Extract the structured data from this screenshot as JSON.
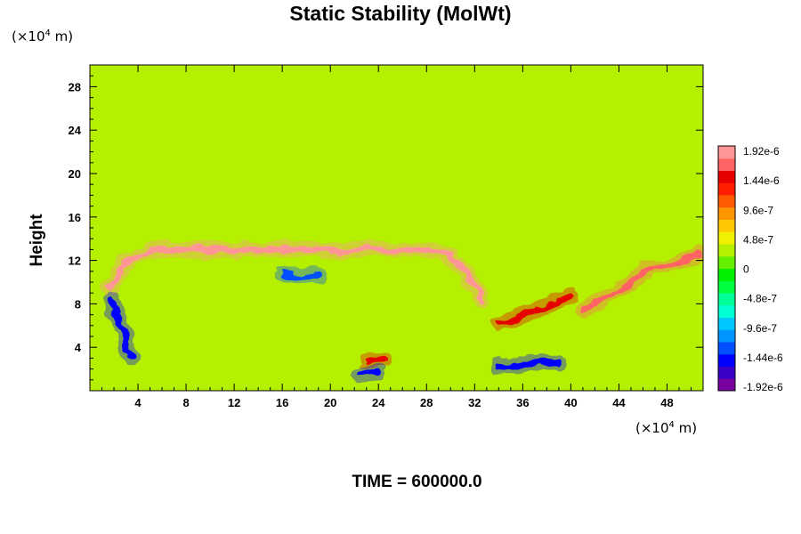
{
  "chart_data": {
    "type": "heatmap",
    "title": "Static Stability (MolWt)",
    "xlabel": "",
    "ylabel": "Height",
    "x_unit": {
      "prefix": "(×10",
      "exp": "4",
      "suffix": " m)"
    },
    "y_unit": {
      "prefix": "(×10",
      "exp": "4",
      "suffix": " m)"
    },
    "xlim": [
      0,
      51
    ],
    "ylim": [
      0,
      30
    ],
    "x_ticks": [
      4,
      8,
      12,
      16,
      20,
      24,
      28,
      32,
      36,
      40,
      44,
      48
    ],
    "y_ticks": [
      4,
      8,
      12,
      16,
      20,
      24,
      28
    ],
    "colorbar": {
      "min": -1.92e-06,
      "max": 1.92e-06,
      "tick_values": [
        1.92e-06,
        1.44e-06,
        9.6e-07,
        4.8e-07,
        0,
        -4.8e-07,
        -9.6e-07,
        -1.44e-06,
        -1.92e-06
      ],
      "tick_labels": [
        "1.92e-6",
        "1.44e-6",
        "9.6e-7",
        "4.8e-7",
        "0",
        "-4.8e-7",
        "-9.6e-7",
        "-1.44e-6",
        "-1.92e-6"
      ],
      "colors": [
        "#7a00a0",
        "#3a00c8",
        "#0000ff",
        "#0050ff",
        "#0096ff",
        "#00c8ff",
        "#00ffd2",
        "#00ff96",
        "#00ff3c",
        "#00f000",
        "#64f000",
        "#b4f000",
        "#f0f000",
        "#ffc800",
        "#ff9600",
        "#ff5a00",
        "#ff1e00",
        "#e60000",
        "#ff6464",
        "#ff9696"
      ]
    },
    "background_value": 2e-07,
    "features": [
      {
        "name": "upper-band",
        "value": 1.92e-06,
        "path": [
          [
            1.6,
            9.6
          ],
          [
            3,
            11.8
          ],
          [
            5,
            12.9
          ],
          [
            16,
            13.0
          ],
          [
            28,
            13.0
          ],
          [
            30,
            12.4
          ],
          [
            31.5,
            10.5
          ],
          [
            32.6,
            8.2
          ]
        ]
      },
      {
        "name": "left-flank-neg",
        "value": -1.44e-06,
        "path": [
          [
            1.8,
            8.5
          ],
          [
            2.4,
            6.5
          ],
          [
            3.0,
            4.5
          ],
          [
            3.4,
            3.2
          ]
        ]
      },
      {
        "name": "core-neg",
        "value": -1.2e-06,
        "path": [
          [
            16,
            10.8
          ],
          [
            17.5,
            10.6
          ],
          [
            19,
            10.5
          ]
        ]
      },
      {
        "name": "right-cell-pos",
        "value": 1.7e-06,
        "path": [
          [
            41,
            7.5
          ],
          [
            43,
            8.6
          ],
          [
            45,
            10.2
          ],
          [
            47,
            11.3
          ],
          [
            49,
            11.8
          ],
          [
            50.5,
            12.6
          ]
        ]
      },
      {
        "name": "right-cell-neg",
        "value": -1.44e-06,
        "path": [
          [
            34,
            2.2
          ],
          [
            35.5,
            2.4
          ],
          [
            37.5,
            2.7
          ],
          [
            39,
            2.5
          ]
        ]
      },
      {
        "name": "mid-pos-1",
        "value": 1.44e-06,
        "path": [
          [
            34,
            6.2
          ],
          [
            36,
            6.9
          ],
          [
            38,
            7.8
          ],
          [
            40,
            8.8
          ]
        ]
      },
      {
        "name": "surface-pos",
        "value": 1.44e-06,
        "path": [
          [
            23,
            2.6
          ],
          [
            24.5,
            2.9
          ]
        ]
      },
      {
        "name": "surface-neg",
        "value": -1.44e-06,
        "path": [
          [
            22.5,
            1.4
          ],
          [
            24,
            1.6
          ]
        ]
      }
    ]
  },
  "footer": {
    "text": "TIME = 600000.0"
  }
}
